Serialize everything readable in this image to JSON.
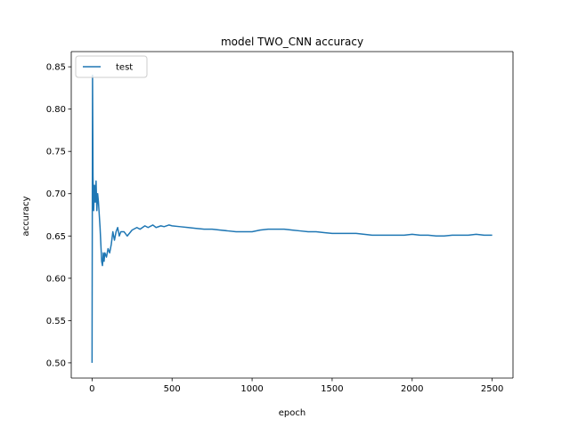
{
  "chart_data": {
    "type": "line",
    "title": "model TWO_CNN accuracy",
    "xlabel": "epoch",
    "ylabel": "accuracy",
    "xlim": [
      -130,
      2630
    ],
    "ylim": [
      0.482,
      0.868
    ],
    "x_ticks": [
      0,
      500,
      1000,
      1500,
      2000,
      2500
    ],
    "y_ticks": [
      0.5,
      0.55,
      0.6,
      0.65,
      0.7,
      0.75,
      0.8,
      0.85
    ],
    "x_tick_labels": [
      "0",
      "500",
      "1000",
      "1500",
      "2000",
      "2500"
    ],
    "y_tick_labels": [
      "0.50",
      "0.55",
      "0.60",
      "0.65",
      "0.70",
      "0.75",
      "0.80",
      "0.85"
    ],
    "grid": false,
    "legend": {
      "position": "upper-left",
      "entries": [
        "test"
      ]
    },
    "series": [
      {
        "name": "test",
        "color": "#1f77b4",
        "x": [
          0,
          3,
          6,
          10,
          15,
          20,
          25,
          30,
          35,
          40,
          45,
          50,
          55,
          60,
          65,
          70,
          75,
          80,
          90,
          100,
          110,
          120,
          130,
          140,
          150,
          160,
          170,
          180,
          200,
          220,
          250,
          280,
          300,
          330,
          350,
          380,
          400,
          430,
          450,
          480,
          500,
          550,
          600,
          650,
          700,
          750,
          800,
          850,
          900,
          950,
          1000,
          1050,
          1100,
          1150,
          1200,
          1250,
          1300,
          1350,
          1400,
          1450,
          1500,
          1550,
          1600,
          1650,
          1700,
          1750,
          1800,
          1850,
          1900,
          1950,
          2000,
          2050,
          2100,
          2150,
          2200,
          2250,
          2300,
          2350,
          2400,
          2450,
          2500
        ],
        "values": [
          0.5,
          0.84,
          0.72,
          0.68,
          0.71,
          0.69,
          0.715,
          0.68,
          0.7,
          0.69,
          0.675,
          0.66,
          0.64,
          0.62,
          0.615,
          0.63,
          0.62,
          0.63,
          0.625,
          0.635,
          0.63,
          0.64,
          0.655,
          0.645,
          0.655,
          0.66,
          0.65,
          0.655,
          0.655,
          0.65,
          0.657,
          0.66,
          0.658,
          0.662,
          0.66,
          0.663,
          0.66,
          0.662,
          0.661,
          0.663,
          0.662,
          0.661,
          0.66,
          0.659,
          0.658,
          0.658,
          0.657,
          0.656,
          0.655,
          0.655,
          0.655,
          0.657,
          0.658,
          0.658,
          0.658,
          0.657,
          0.656,
          0.655,
          0.655,
          0.654,
          0.653,
          0.653,
          0.653,
          0.653,
          0.652,
          0.651,
          0.651,
          0.651,
          0.651,
          0.651,
          0.652,
          0.651,
          0.651,
          0.65,
          0.65,
          0.651,
          0.651,
          0.651,
          0.652,
          0.651,
          0.651
        ]
      }
    ]
  }
}
